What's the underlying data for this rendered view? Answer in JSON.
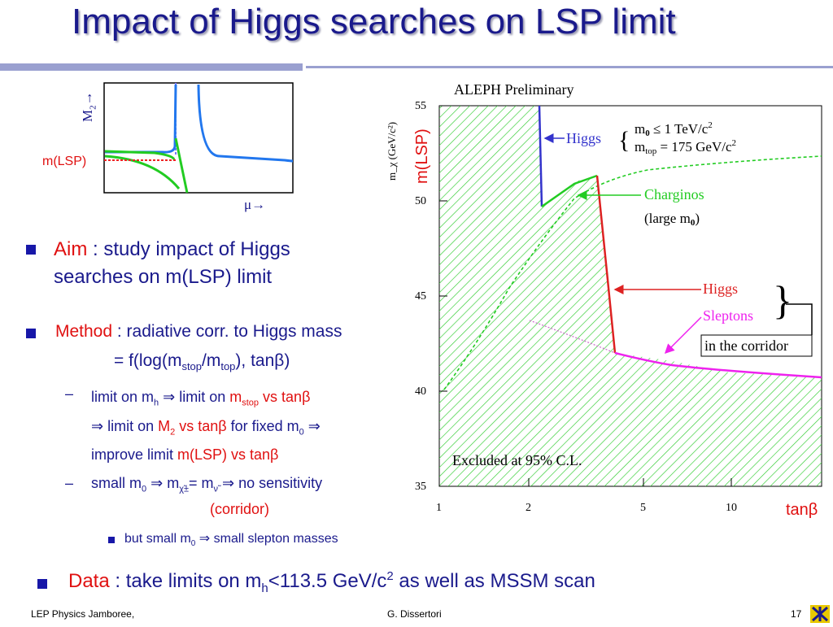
{
  "title": "Impact of Higgs searches on LSP limit",
  "sketch": {
    "y_label": "M",
    "y_sub": "2",
    "arrow_up": "→",
    "x_label": "μ→",
    "lsp_label": "m(LSP)"
  },
  "aim": {
    "key": "Aim",
    "colon": " : ",
    "line1": " study impact of Higgs",
    "line2": "searches on m(LSP) limit"
  },
  "method": {
    "key": "Method",
    "rest": " : radiative corr. to Higgs mass",
    "eq_pre": "=  f(log(m",
    "eq_sub1": "stop",
    "eq_mid": "/m",
    "eq_sub2": "top",
    "eq_post": "), tanβ)"
  },
  "sub1": {
    "dash": "–",
    "a": "limit on m",
    "a_sub": "h",
    "b": "  ⇒  limit on  ",
    "c": "m",
    "c_sub": "stop",
    "d": " vs tanβ",
    "l2a": "⇒  limit on  ",
    "l2b": "M",
    "l2b_sub": "2",
    "l2c": " vs tanβ",
    "l2d": " for fixed m",
    "l2d_sub": "0",
    "l2e": " ⇒",
    "l3a": "improve limit  ",
    "l3b": "m(LSP) vs tanβ"
  },
  "sub2": {
    "dash": "–",
    "a": "small m",
    "a_sub": "0",
    "b": "  ⇒ m",
    "b_sub": "χ̃±",
    "c": "= m",
    "c_sub": "ν̃",
    "d": "  ⇒ no sensitivity",
    "corridor": "(corridor)"
  },
  "sub3": {
    "a": "but small m",
    "a_sub": "0",
    "b": " ⇒  small slepton masses"
  },
  "data": {
    "key": "Data",
    "pre": " :  take limits on m",
    "sub": "h",
    "mid": "<113.5 GeV/c",
    "sup": "2",
    "post": " as well as MSSM scan"
  },
  "plot": {
    "header": "ALEPH Preliminary",
    "y_axis_label": "m_χ  (GeV/c²)",
    "y_overlay": "m(LSP)",
    "x_overlay": "tanβ",
    "y_ticks": [
      "55",
      "50",
      "45",
      "40",
      "35"
    ],
    "x_ticks": [
      "1",
      "2",
      "5",
      "10"
    ],
    "param1_a": "m",
    "param1_sub": "0",
    "param1_b": "  ≤ 1 TeV/c",
    "param1_sup": "2",
    "param2_a": "m",
    "param2_sub": "top",
    "param2_b": " = 175 GeV/c",
    "param2_sup": "2",
    "higgs_top": "Higgs",
    "charginos": "Charginos",
    "large_m0_a": "(large m",
    "large_m0_sub": "0",
    "large_m0_b": ")",
    "higgs_mid": "Higgs",
    "sleptons": "Sleptons",
    "corridor": "in the corridor",
    "excluded": "Excluded at 95% C.L.",
    "colors": {
      "hatch": "#2ecc2e",
      "higgs_blue": "#3333cc",
      "higgs_red": "#dd2222",
      "slepton": "#ee22ee",
      "charginos": "#22cc22"
    }
  },
  "footer": {
    "left": "LEP Physics Jamboree,",
    "center": "G. Dissertori",
    "page": "17",
    "logo_icon": "cern-logo-icon"
  }
}
